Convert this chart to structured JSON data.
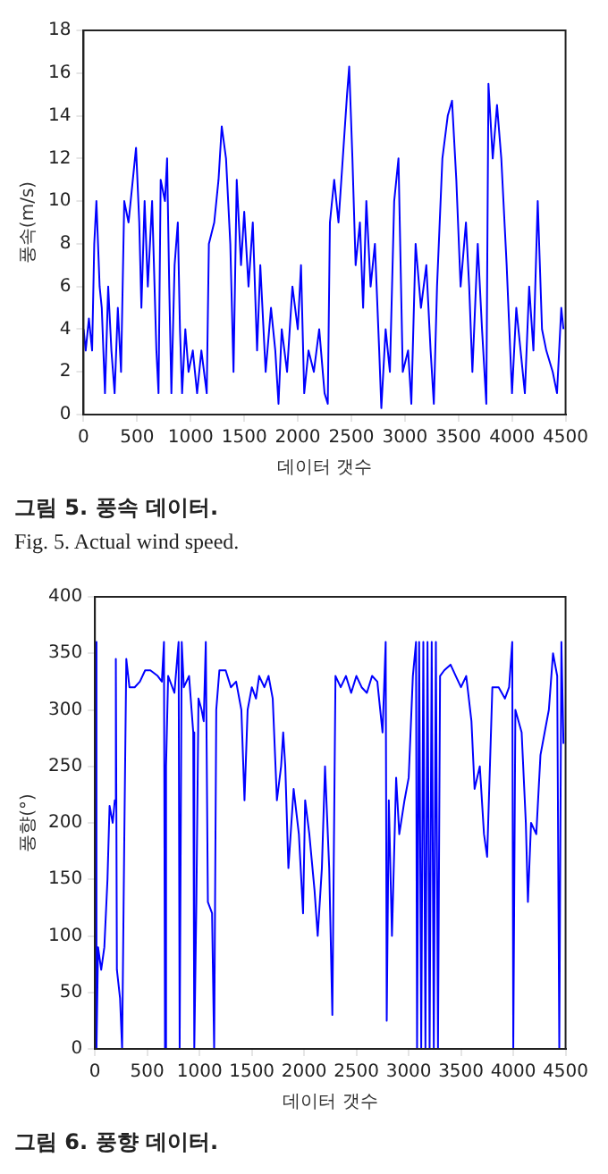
{
  "chart_data": [
    {
      "type": "line",
      "xlabel": "데이터 갯수",
      "ylabel": "풍속(m/s)",
      "annotations": [
        "그림 5. 풍속 데이터.",
        "Fig.   5.  Actual wind speed."
      ],
      "xlim": [
        0,
        4500
      ],
      "xticks": [
        0,
        500,
        1000,
        1500,
        2000,
        2500,
        3000,
        3500,
        4000,
        4500
      ],
      "ylim": [
        0,
        18
      ],
      "yticks": [
        0,
        2,
        4,
        6,
        8,
        10,
        12,
        14,
        16,
        18
      ],
      "x": [
        0,
        20,
        50,
        80,
        100,
        120,
        150,
        170,
        200,
        230,
        260,
        290,
        320,
        350,
        380,
        420,
        460,
        490,
        520,
        540,
        570,
        600,
        640,
        680,
        700,
        720,
        760,
        780,
        800,
        820,
        850,
        880,
        900,
        920,
        950,
        980,
        1020,
        1060,
        1100,
        1150,
        1170,
        1220,
        1260,
        1290,
        1330,
        1370,
        1400,
        1430,
        1470,
        1500,
        1540,
        1580,
        1620,
        1650,
        1700,
        1750,
        1790,
        1820,
        1850,
        1900,
        1950,
        2000,
        2030,
        2060,
        2100,
        2150,
        2200,
        2250,
        2280,
        2300,
        2340,
        2380,
        2420,
        2460,
        2480,
        2510,
        2540,
        2580,
        2610,
        2640,
        2680,
        2720,
        2760,
        2780,
        2820,
        2860,
        2900,
        2940,
        2980,
        3030,
        3060,
        3100,
        3150,
        3200,
        3240,
        3270,
        3300,
        3350,
        3400,
        3440,
        3480,
        3520,
        3570,
        3600,
        3630,
        3680,
        3720,
        3760,
        3780,
        3820,
        3860,
        3900,
        3950,
        4000,
        4040,
        4080,
        4120,
        4160,
        4200,
        4240,
        4280,
        4320,
        4380,
        4420,
        4460,
        4480
      ],
      "series": [
        {
          "color": "#0000ff",
          "values": [
            4,
            3,
            4.5,
            3,
            8,
            10,
            6,
            5,
            1,
            6,
            3,
            1,
            5,
            2,
            10,
            9,
            11,
            12.5,
            9,
            5,
            10,
            6,
            10,
            3,
            1,
            11,
            10,
            12,
            6,
            1,
            7,
            9,
            4,
            1,
            4,
            2,
            3,
            1,
            3,
            1,
            8,
            9,
            11,
            13.5,
            12,
            8,
            2,
            11,
            7,
            9.5,
            6,
            9,
            3,
            7,
            2,
            5,
            3,
            0.5,
            4,
            2,
            6,
            4,
            7,
            1,
            3,
            2,
            4,
            1,
            0.5,
            9,
            11,
            9,
            12,
            15,
            16.3,
            12,
            7,
            9,
            5,
            10,
            6,
            8,
            3,
            0.3,
            4,
            2,
            10,
            12,
            2,
            3,
            0.5,
            8,
            5,
            7,
            3,
            0.5,
            6,
            12,
            14,
            14.7,
            11,
            6,
            9,
            6,
            2,
            8,
            4,
            0.5,
            15.5,
            12,
            14.5,
            12,
            7,
            1,
            5,
            3,
            1,
            6,
            3,
            10,
            4,
            3,
            2,
            1,
            5,
            4
          ]
        }
      ]
    },
    {
      "type": "line",
      "xlabel": "데이터 갯수",
      "ylabel": "풍향(°)",
      "annotations": [
        "그림 6. 풍향 데이터."
      ],
      "xlim": [
        0,
        4500
      ],
      "xticks": [
        0,
        500,
        1000,
        1500,
        2000,
        2500,
        3000,
        3500,
        4000,
        4500
      ],
      "ylim": [
        0,
        400
      ],
      "yticks": [
        0,
        50,
        100,
        150,
        200,
        250,
        300,
        350,
        400
      ],
      "x": [
        0,
        15,
        30,
        60,
        90,
        120,
        140,
        170,
        190,
        200,
        210,
        240,
        260,
        280,
        300,
        330,
        380,
        430,
        480,
        530,
        600,
        640,
        660,
        670,
        680,
        700,
        760,
        800,
        810,
        830,
        850,
        900,
        940,
        950,
        970,
        990,
        1020,
        1040,
        1060,
        1080,
        1120,
        1140,
        1160,
        1190,
        1250,
        1300,
        1350,
        1400,
        1430,
        1460,
        1500,
        1540,
        1570,
        1620,
        1660,
        1700,
        1740,
        1780,
        1800,
        1820,
        1850,
        1900,
        1950,
        1990,
        2010,
        2050,
        2100,
        2130,
        2170,
        2200,
        2240,
        2270,
        2300,
        2350,
        2400,
        2450,
        2500,
        2550,
        2600,
        2650,
        2700,
        2750,
        2780,
        2790,
        2810,
        2840,
        2880,
        2910,
        2960,
        3000,
        3040,
        3070,
        3080,
        3100,
        3120,
        3140,
        3160,
        3180,
        3200,
        3220,
        3240,
        3260,
        3280,
        3300,
        3340,
        3400,
        3450,
        3500,
        3550,
        3600,
        3630,
        3680,
        3720,
        3750,
        3800,
        3860,
        3920,
        3960,
        3990,
        4000,
        4020,
        4080,
        4120,
        4140,
        4170,
        4220,
        4260,
        4300,
        4340,
        4380,
        4420,
        4440,
        4460,
        4480
      ],
      "series": [
        {
          "color": "#0000ff",
          "values": [
            360,
            0,
            90,
            70,
            90,
            150,
            215,
            200,
            220,
            345,
            70,
            45,
            0,
            180,
            345,
            320,
            320,
            325,
            335,
            335,
            330,
            325,
            360,
            0,
            250,
            330,
            315,
            360,
            0,
            360,
            320,
            330,
            280,
            0,
            130,
            310,
            300,
            290,
            360,
            130,
            120,
            0,
            300,
            335,
            335,
            320,
            325,
            300,
            220,
            300,
            320,
            310,
            330,
            320,
            330,
            310,
            220,
            250,
            280,
            250,
            160,
            230,
            190,
            120,
            220,
            190,
            140,
            100,
            160,
            250,
            160,
            30,
            330,
            320,
            330,
            315,
            330,
            320,
            315,
            330,
            325,
            280,
            360,
            25,
            220,
            100,
            240,
            190,
            220,
            240,
            330,
            360,
            0,
            360,
            0,
            360,
            0,
            360,
            0,
            360,
            0,
            360,
            0,
            330,
            335,
            340,
            330,
            320,
            330,
            290,
            230,
            250,
            190,
            170,
            320,
            320,
            310,
            320,
            360,
            0,
            300,
            280,
            200,
            130,
            200,
            190,
            260,
            280,
            300,
            350,
            330,
            0,
            360,
            270
          ]
        }
      ]
    }
  ]
}
